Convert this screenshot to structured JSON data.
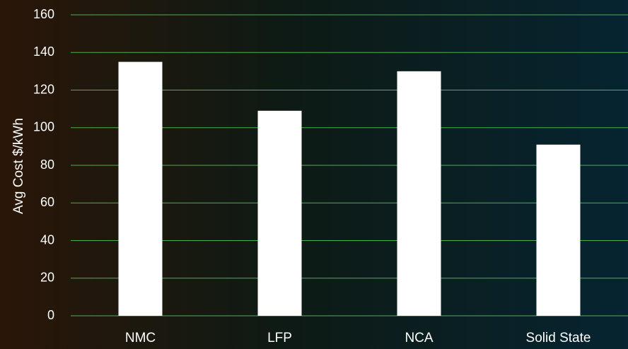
{
  "chart_data": {
    "type": "bar",
    "categories": [
      "NMC",
      "LFP",
      "NCA",
      "Solid State"
    ],
    "values": [
      135,
      109,
      130,
      91
    ],
    "title": "",
    "xlabel": "",
    "ylabel": "Avg Cost $/kWh",
    "ylim": [
      0,
      160
    ],
    "yticks": [
      0,
      20,
      40,
      60,
      80,
      100,
      120,
      140,
      160
    ],
    "grid": true,
    "legend": "none",
    "colors": {
      "bar": "#ffffff",
      "grid": "#4caf50",
      "text": "#ffffff"
    }
  }
}
